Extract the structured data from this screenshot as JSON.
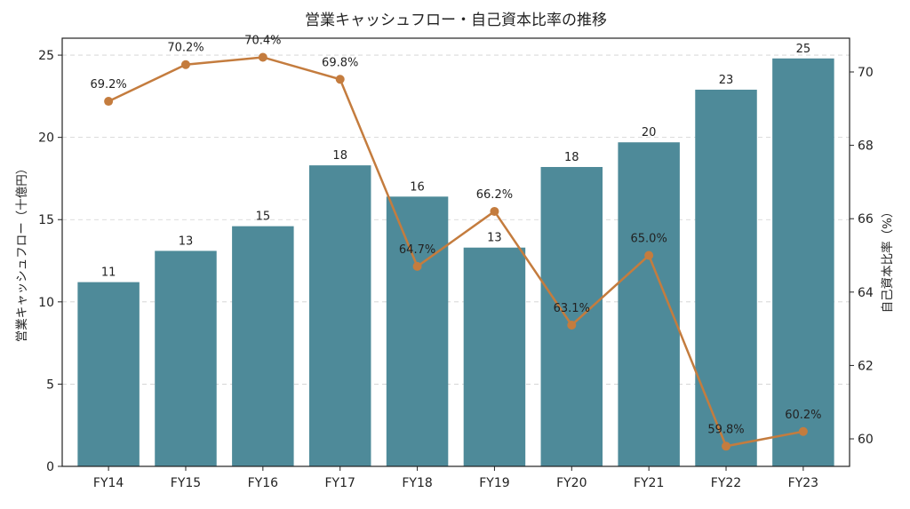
{
  "chart_data": {
    "type": "bar+line",
    "title": "営業キャッシュフロー・自己資本比率の推移",
    "categories": [
      "FY14",
      "FY15",
      "FY16",
      "FY17",
      "FY18",
      "FY19",
      "FY20",
      "FY21",
      "FY22",
      "FY23"
    ],
    "series": [
      {
        "name": "営業キャッシュフロー",
        "type": "bar",
        "axis": "left",
        "color": "#4e8a99",
        "values": [
          11.2,
          13.1,
          14.6,
          18.3,
          16.4,
          13.3,
          18.2,
          19.7,
          22.9,
          24.8
        ],
        "labels": [
          "11",
          "13",
          "15",
          "18",
          "16",
          "13",
          "18",
          "20",
          "23",
          "25"
        ]
      },
      {
        "name": "自己資本比率",
        "type": "line",
        "axis": "right",
        "color": "#c47c3e",
        "values": [
          69.2,
          70.2,
          70.4,
          69.8,
          64.7,
          66.2,
          63.1,
          65.0,
          59.8,
          60.2
        ],
        "labels": [
          "69.2%",
          "70.2%",
          "70.4%",
          "69.8%",
          "64.7%",
          "66.2%",
          "63.1%",
          "65.0%",
          "59.8%",
          "60.2%"
        ]
      }
    ],
    "ylabel": "営業キャッシュフロー（十億円）",
    "y2label": "自己資本比率（%）",
    "xlabel": "",
    "ylim": [
      0,
      26.03
    ],
    "y2lim": [
      59.25,
      70.92
    ],
    "yticks": [
      0,
      5,
      10,
      15,
      20,
      25
    ],
    "y2ticks": [
      60,
      62,
      64,
      66,
      68,
      70
    ],
    "grid": "horizontal-dashed",
    "legend": "none"
  }
}
